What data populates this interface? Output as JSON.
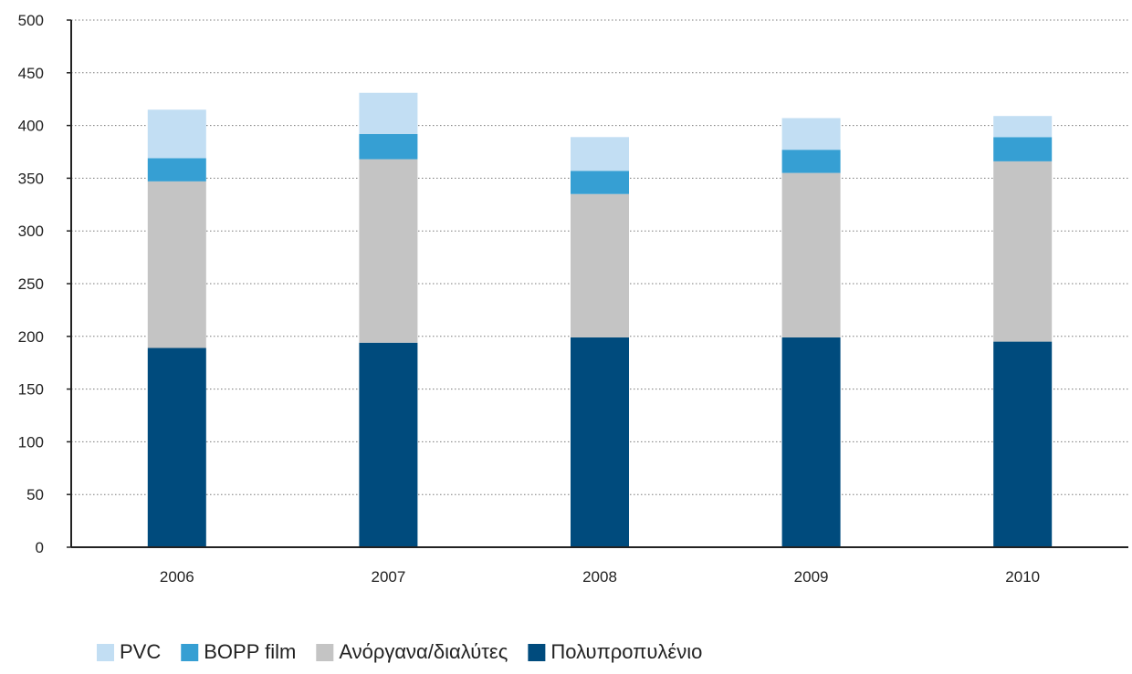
{
  "chart_data": {
    "type": "bar",
    "stacked": true,
    "categories": [
      "2006",
      "2007",
      "2008",
      "2009",
      "2010"
    ],
    "series": [
      {
        "name": "Πολυπροπυλένιο",
        "values": [
          189,
          194,
          199,
          199,
          195
        ],
        "color": "#004b7d"
      },
      {
        "name": "Ανόργανα/διαλύτες",
        "values": [
          158,
          174,
          136,
          156,
          171
        ],
        "color": "#c4c4c4"
      },
      {
        "name": "BOPP film",
        "values": [
          22,
          24,
          22,
          22,
          23
        ],
        "color": "#369fd3"
      },
      {
        "name": "PVC",
        "values": [
          46,
          39,
          32,
          30,
          20
        ],
        "color": "#c2def3"
      }
    ],
    "legend_order": [
      "PVC",
      "BOPP film",
      "Ανόργανα/διαλύτες",
      "Πολυπροπυλένιο"
    ],
    "legend_position": "bottom-left",
    "yticks": [
      0,
      50,
      100,
      150,
      200,
      250,
      300,
      350,
      400,
      450,
      500
    ],
    "ylim": [
      0,
      500
    ],
    "grid": true,
    "grid_style": "dotted",
    "title": "",
    "xlabel": "",
    "ylabel": ""
  }
}
